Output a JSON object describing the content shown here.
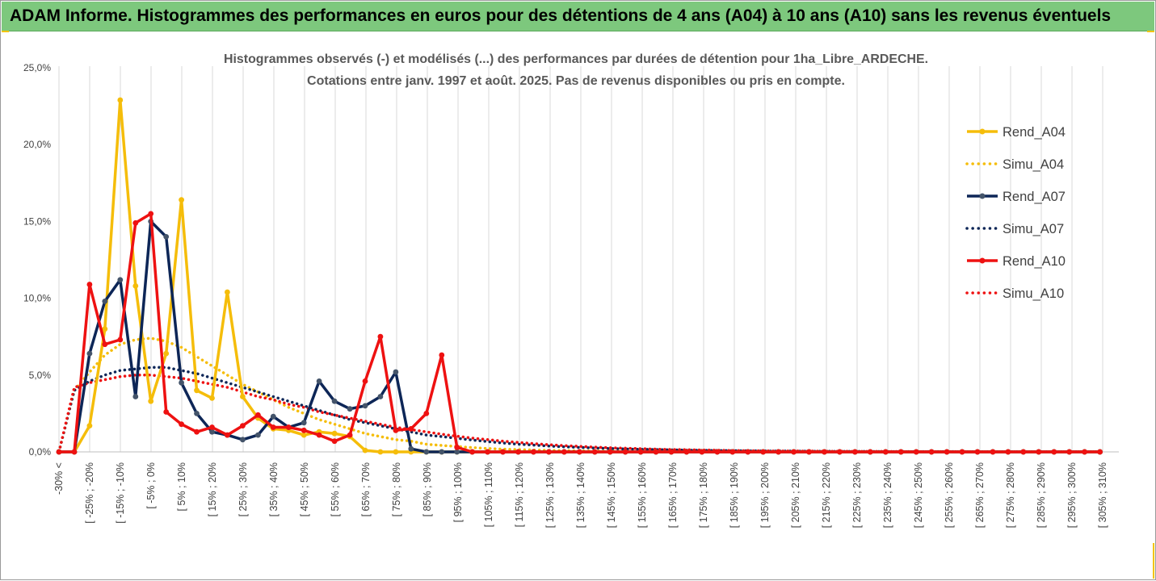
{
  "banner": {
    "title": "ADAM Informe. Histogrammes des performances en euros pour des détentions de 4 ans (A04) à 10 ans (A10) sans les revenus éventuels"
  },
  "colors": {
    "banner": "#7dc87d",
    "A04": "#f5bd0a",
    "A07": "#0d2657",
    "A10": "#ee1111",
    "grid": "#d9d9d9"
  },
  "chart_data": {
    "type": "line",
    "title": "Histogrammes observés (-) et modélisés (...) des performances par durées de détention pour 1ha_Libre_ARDECHE.",
    "subtitle": "Cotations entre janv. 1997 et août. 2025. Pas de revenus disponibles ou pris en compte.",
    "xlabel": "",
    "ylabel": "",
    "ylim": [
      0,
      25
    ],
    "yticks": [
      "0,0%",
      "5,0%",
      "10,0%",
      "15,0%",
      "20,0%",
      "25,0%"
    ],
    "grid": "vertical",
    "legend": "right",
    "x_labels": [
      "-30% <",
      "[ -25% ; -20%",
      "[ -15% ; -10%",
      "[ -5% ; 0%",
      "[ 5% ; 10%",
      "[ 15% ; 20%",
      "[ 25% ; 30%",
      "[ 35% ; 40%",
      "[ 45% ; 50%",
      "[ 55% ; 60%",
      "[ 65% ; 70%",
      "[ 75% ; 80%",
      "[ 85% ; 90%",
      "[ 95% ; 100%",
      "[ 105% ; 110%",
      "[ 115% ; 120%",
      "[ 125% ; 130%",
      "[ 135% ; 140%",
      "[ 145% ; 150%",
      "[ 155% ; 160%",
      "[ 165% ; 170%",
      "[ 175% ; 180%",
      "[ 185% ; 190%",
      "[ 195% ; 200%",
      "[ 205% ; 210%",
      "[ 215% ; 220%",
      "[ 225% ; 230%",
      "[ 235% ; 240%",
      "[ 245% ; 250%",
      "[ 255% ; 260%",
      "[ 265% ; 270%",
      "[ 275% ; 280%",
      "[ 285% ; 290%",
      "[ 295% ; 300%",
      "[ 305% ; 310%"
    ],
    "series": [
      {
        "name": "Rend_A04",
        "key": "A04",
        "style": "solid",
        "values": [
          0,
          0,
          1.7,
          8.0,
          22.9,
          10.8,
          3.3,
          6.4,
          16.4,
          4.0,
          3.5,
          10.4,
          3.6,
          2.2,
          1.5,
          1.4,
          1.1,
          1.3,
          1.2,
          1.0,
          0.1,
          0,
          0,
          0
        ]
      },
      {
        "name": "Simu_A04",
        "key": "A04",
        "style": "dotted",
        "values": [
          0,
          4.0,
          5.2,
          6.3,
          7.0,
          7.3,
          7.4,
          7.2,
          6.8,
          6.2,
          5.6,
          5.0,
          4.4,
          3.9,
          3.4,
          2.9,
          2.5,
          2.1,
          1.8,
          1.5,
          1.2,
          1.0,
          0.8,
          0.7,
          0.5,
          0.42,
          0.35,
          0.28,
          0.22,
          0.18,
          0.15,
          0.12,
          0.1,
          0.08,
          0.07,
          0.06,
          0.05,
          0.04,
          0.04,
          0.03,
          0.03,
          0.03,
          0.02,
          0.02,
          0.02,
          0.02,
          0.02,
          0.01,
          0.01,
          0.01,
          0.01,
          0.01,
          0.01,
          0.01,
          0.01,
          0.01,
          0.01,
          0.01,
          0.01,
          0.01,
          0.01,
          0.01,
          0.01,
          0.01,
          0.01,
          0.01,
          0.01,
          0.01,
          0.01
        ]
      },
      {
        "name": "Rend_A07",
        "key": "A07",
        "style": "solid",
        "values": [
          0,
          0,
          6.4,
          9.8,
          11.2,
          3.6,
          15.0,
          14.0,
          4.5,
          2.5,
          1.3,
          1.1,
          0.8,
          1.1,
          2.3,
          1.6,
          1.9,
          4.6,
          3.3,
          2.8,
          3.0,
          3.6,
          5.2,
          0.2,
          0,
          0
        ]
      },
      {
        "name": "Simu_A07",
        "key": "A07",
        "style": "dotted",
        "values": [
          0,
          4.0,
          4.6,
          5.0,
          5.3,
          5.4,
          5.5,
          5.5,
          5.3,
          5.1,
          4.8,
          4.5,
          4.2,
          3.9,
          3.6,
          3.3,
          3.0,
          2.7,
          2.4,
          2.1,
          1.9,
          1.7,
          1.5,
          1.3,
          1.1,
          1.0,
          0.88,
          0.77,
          0.67,
          0.58,
          0.5,
          0.44,
          0.38,
          0.33,
          0.29,
          0.25,
          0.22,
          0.19,
          0.17,
          0.15,
          0.13,
          0.11,
          0.1,
          0.09,
          0.08,
          0.07,
          0.06,
          0.05,
          0.05,
          0.04,
          0.04,
          0.03,
          0.03,
          0.03,
          0.02,
          0.02,
          0.02,
          0.02,
          0.02,
          0.01,
          0.01,
          0.01,
          0.01,
          0.01,
          0.01,
          0.01,
          0.01,
          0.01,
          0.01
        ]
      },
      {
        "name": "Rend_A10",
        "key": "A10",
        "style": "solid",
        "values": [
          0,
          0,
          10.9,
          7.0,
          7.3,
          14.9,
          15.5,
          2.6,
          1.8,
          1.3,
          1.6,
          1.1,
          1.7,
          2.4,
          1.6,
          1.6,
          1.4,
          1.1,
          0.7,
          1.1,
          4.6,
          7.5,
          1.4,
          1.5,
          2.5,
          6.3,
          0.3,
          0,
          0,
          0,
          0,
          0,
          0,
          0,
          0,
          0,
          0,
          0,
          0,
          0,
          0,
          0,
          0,
          0,
          0,
          0,
          0,
          0,
          0,
          0,
          0,
          0,
          0,
          0,
          0,
          0,
          0,
          0,
          0,
          0,
          0,
          0,
          0,
          0,
          0,
          0,
          0,
          0,
          0
        ]
      },
      {
        "name": "Simu_A10",
        "key": "A10",
        "style": "dotted",
        "values": [
          0,
          4.2,
          4.5,
          4.7,
          4.9,
          5.0,
          5.0,
          4.9,
          4.8,
          4.6,
          4.4,
          4.2,
          3.9,
          3.6,
          3.4,
          3.1,
          2.9,
          2.6,
          2.4,
          2.2,
          2.0,
          1.8,
          1.6,
          1.45,
          1.3,
          1.15,
          1.02,
          0.9,
          0.8,
          0.7,
          0.62,
          0.54,
          0.47,
          0.41,
          0.36,
          0.31,
          0.27,
          0.24,
          0.21,
          0.18,
          0.16,
          0.14,
          0.12,
          0.11,
          0.09,
          0.08,
          0.07,
          0.06,
          0.06,
          0.05,
          0.04,
          0.04,
          0.03,
          0.03,
          0.03,
          0.02,
          0.02,
          0.02,
          0.02,
          0.02,
          0.01,
          0.01,
          0.01,
          0.01,
          0.01,
          0.01,
          0.01,
          0.01,
          0.01
        ]
      }
    ]
  }
}
